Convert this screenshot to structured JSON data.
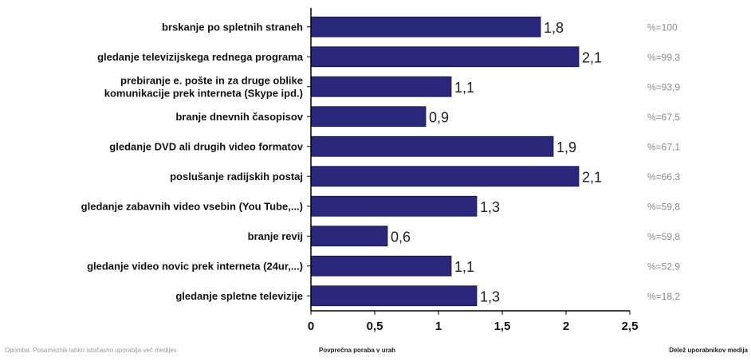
{
  "chart_data": {
    "type": "bar",
    "orientation": "horizontal",
    "categories": [
      [
        "brskanje po spletnih straneh"
      ],
      [
        "gledanje televizijskega rednega programa"
      ],
      [
        "prebiranje e. pošte in za druge oblike",
        "komunikacije prek interneta (Skype ipd.)"
      ],
      [
        "branje dnevnih časopisov"
      ],
      [
        "gledanje DVD ali drugih video formatov"
      ],
      [
        "poslušanje radijskih postaj"
      ],
      [
        "gledanje zabavnih video vsebin (You Tube,...)"
      ],
      [
        "branje revij"
      ],
      [
        "gledanje video novic prek interneta (24ur,...)"
      ],
      [
        "gledanje spletne televizije"
      ]
    ],
    "values": [
      1.8,
      2.1,
      1.1,
      0.9,
      1.9,
      2.1,
      1.3,
      0.6,
      1.1,
      1.3
    ],
    "value_labels": [
      "1,8",
      "2,1",
      "1,1",
      "0,9",
      "1,9",
      "2,1",
      "1,3",
      "0,6",
      "1,1",
      "1,3"
    ],
    "user_share": [
      "%=100",
      "%=99,3",
      "%=93,9",
      "%=67,5",
      "%=67,1",
      "%=66,3",
      "%=59,8",
      "%=59,8",
      "%=52,9",
      "%=18,2"
    ],
    "xlim": [
      0,
      2.5
    ],
    "xticks": [
      0,
      0.5,
      1,
      1.5,
      2,
      2.5
    ],
    "xtick_labels": [
      "0",
      "0,5",
      "1",
      "1,5",
      "2",
      "2,5"
    ],
    "xlabel": "Povprečna poraba v urah",
    "share_title": "Delež uporabnikov medija",
    "footnote": "Opomba: Posameznik lahko istočasno uporablja več medijev",
    "grid": false,
    "bar_color": "#29287a"
  }
}
